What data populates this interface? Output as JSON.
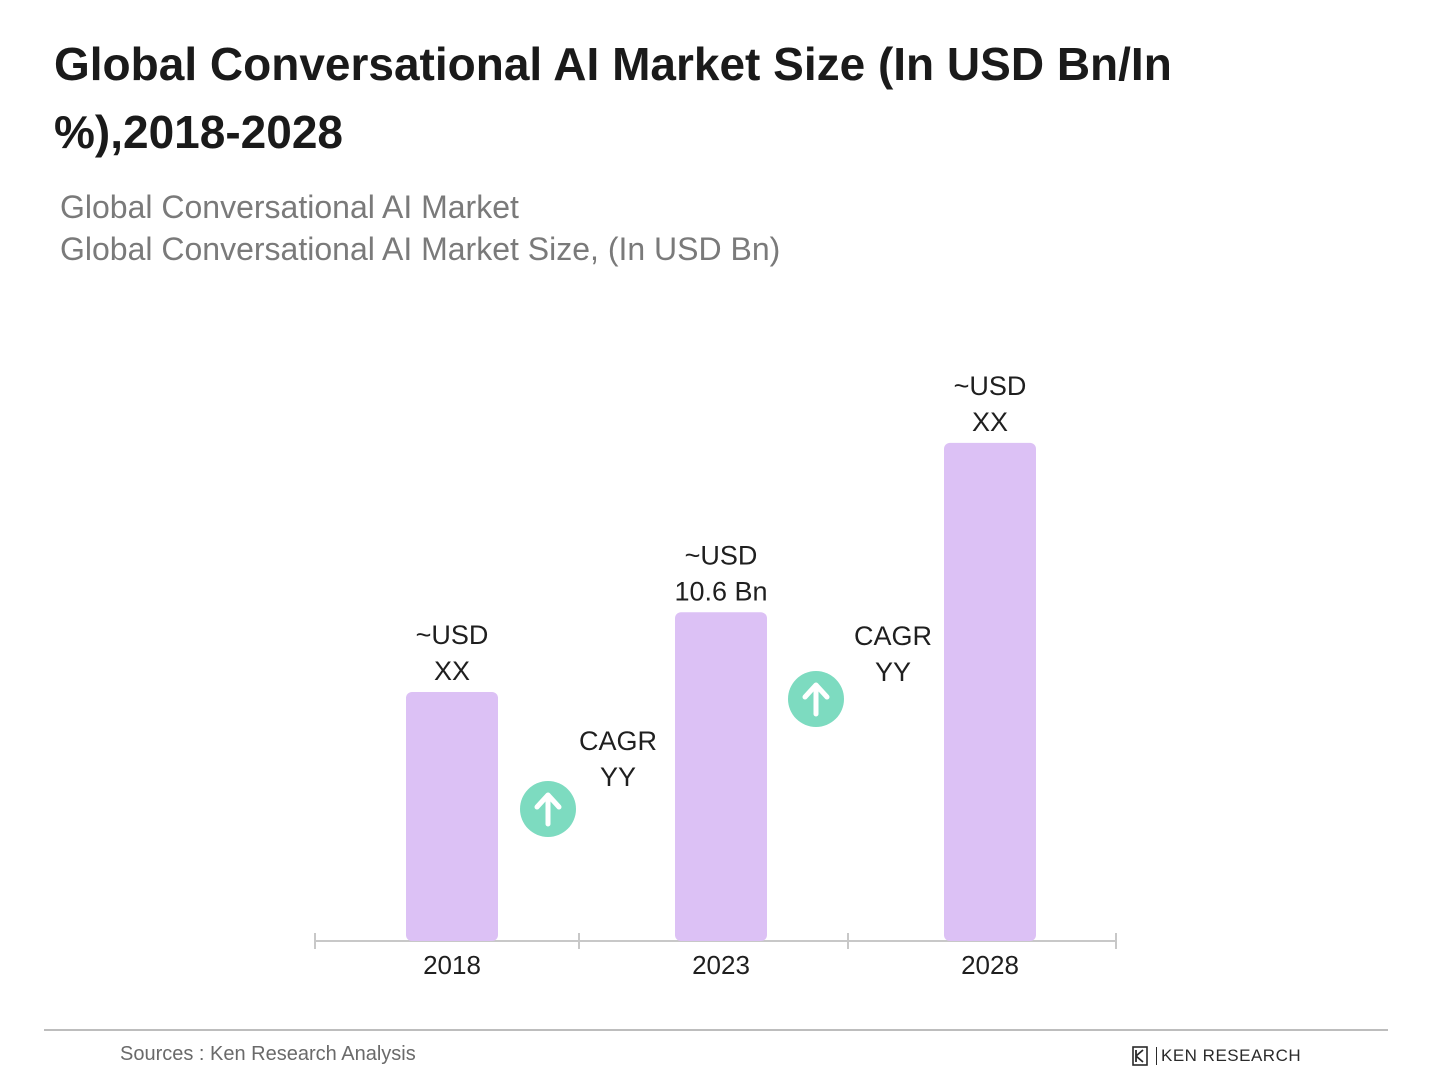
{
  "title": "Global Conversational AI Market Size (In USD Bn/In %),2018-2028",
  "subtitle_line1": "Global Conversational AI Market",
  "subtitle_line2": "Global Conversational AI Market Size, (In USD Bn)",
  "source": "Sources : Ken Research Analysis",
  "logo_text": "KEN RESEARCH",
  "colors": {
    "bar": "#dcc1f5",
    "arrow": "#7ddbc0",
    "axis": "#c8c8c8",
    "text": "#1f1f1f"
  },
  "chart_data": {
    "type": "bar",
    "categories": [
      "2018",
      "2023",
      "2028"
    ],
    "values": [
      5.0,
      6.6,
      10.0
    ],
    "value_labels": [
      [
        "~USD",
        "XX"
      ],
      [
        "~USD",
        "10.6 Bn"
      ],
      [
        "~USD",
        "XX"
      ]
    ],
    "cagr_labels": [
      [
        "CAGR",
        "YY"
      ],
      [
        "CAGR",
        "YY"
      ]
    ],
    "ylim": [
      0,
      10.5
    ],
    "grid": false,
    "legend": "none"
  }
}
